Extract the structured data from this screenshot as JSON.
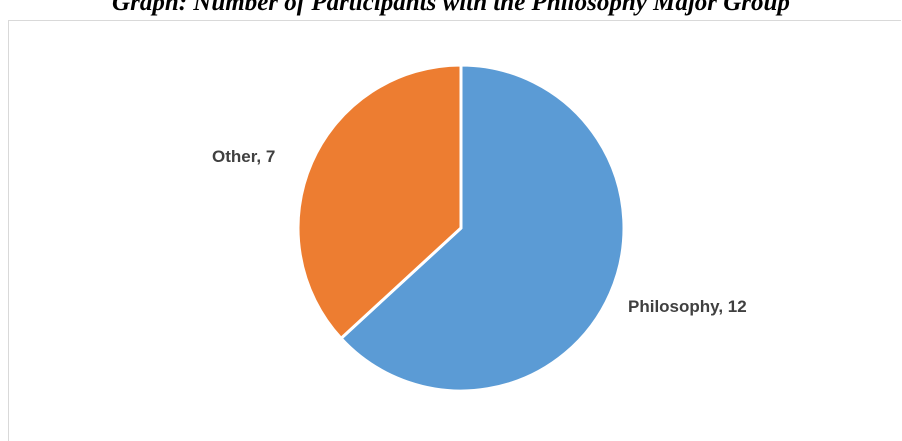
{
  "caption": "Graph: Number of Participants with the Philosophy Major Group",
  "chart_data": {
    "type": "pie",
    "slices": [
      {
        "label": "Philosophy, 12",
        "category": "Philosophy",
        "value": 12,
        "color": "#5B9BD5"
      },
      {
        "label": "Other, 7",
        "category": "Other",
        "value": 7,
        "color": "#ED7D31"
      }
    ],
    "start": "12 o'clock",
    "direction": "clockwise",
    "legend": "none",
    "data_labels": "category, value"
  }
}
